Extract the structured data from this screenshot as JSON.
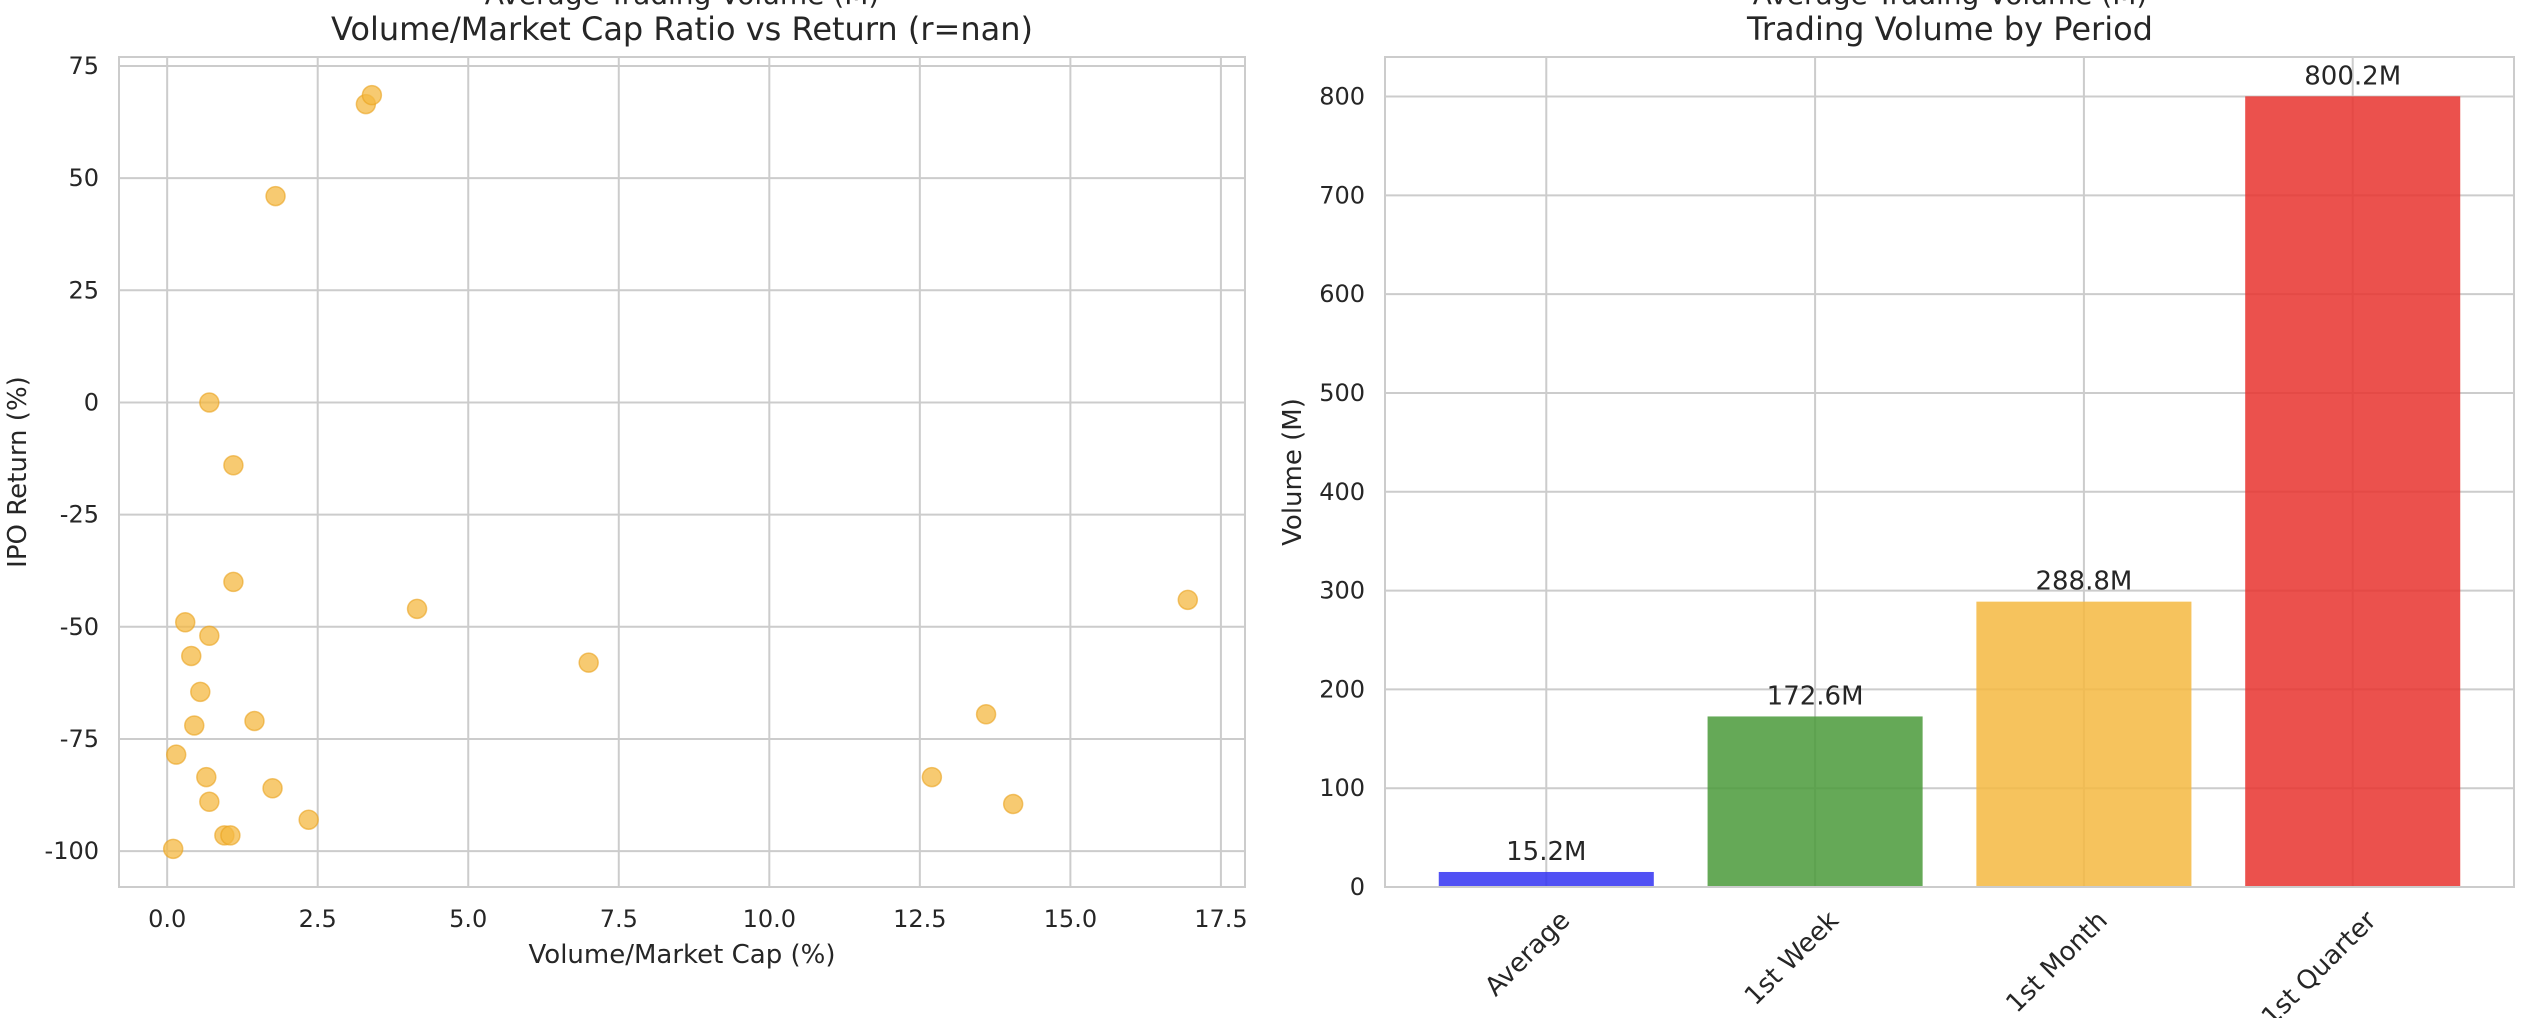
{
  "chart_data": [
    {
      "type": "scatter",
      "suptitle": "Average Trading Volume (M)",
      "title": "Volume/Market Cap Ratio vs Return (r=nan)",
      "xlabel": "Volume/Market Cap (%)",
      "ylabel": "IPO Return (%)",
      "xlim": [
        -0.8,
        17.9
      ],
      "ylim": [
        -108,
        77
      ],
      "xticks": [
        0.0,
        2.5,
        5.0,
        7.5,
        10.0,
        12.5,
        15.0,
        17.5
      ],
      "xtick_labels": [
        "0.0",
        "2.5",
        "5.0",
        "7.5",
        "10.0",
        "12.5",
        "15.0",
        "17.5"
      ],
      "yticks": [
        75,
        50,
        25,
        0,
        -25,
        -50,
        -75,
        -100
      ],
      "ytick_labels": [
        "75",
        "50",
        "25",
        "0",
        "-25",
        "-50",
        "-75",
        "-100"
      ],
      "grid": true,
      "marker_color": "#F4B841",
      "points": [
        {
          "x": 3.3,
          "y": 66.5
        },
        {
          "x": 3.4,
          "y": 68.5
        },
        {
          "x": 1.8,
          "y": 46
        },
        {
          "x": 0.7,
          "y": 0
        },
        {
          "x": 1.1,
          "y": -14
        },
        {
          "x": 1.1,
          "y": -40
        },
        {
          "x": 0.3,
          "y": -49
        },
        {
          "x": 0.7,
          "y": -52
        },
        {
          "x": 0.4,
          "y": -56.5
        },
        {
          "x": 0.55,
          "y": -64.5
        },
        {
          "x": 0.45,
          "y": -72
        },
        {
          "x": 1.45,
          "y": -71
        },
        {
          "x": 0.15,
          "y": -78.5
        },
        {
          "x": 0.65,
          "y": -83.5
        },
        {
          "x": 1.75,
          "y": -86
        },
        {
          "x": 0.7,
          "y": -89
        },
        {
          "x": 2.35,
          "y": -93
        },
        {
          "x": 0.95,
          "y": -96.5
        },
        {
          "x": 1.05,
          "y": -96.5
        },
        {
          "x": 0.1,
          "y": -99.5
        },
        {
          "x": 4.15,
          "y": -46
        },
        {
          "x": 7.0,
          "y": -58
        },
        {
          "x": 12.7,
          "y": -83.5
        },
        {
          "x": 13.6,
          "y": -69.5
        },
        {
          "x": 14.05,
          "y": -89.5
        },
        {
          "x": 16.95,
          "y": -44
        }
      ]
    },
    {
      "type": "bar",
      "suptitle": "Average Trading Volume (M)",
      "title": "Trading Volume by Period",
      "xlabel": "",
      "ylabel": "Volume (M)",
      "ylim": [
        0,
        840
      ],
      "yticks": [
        0,
        100,
        200,
        300,
        400,
        500,
        600,
        700,
        800
      ],
      "ytick_labels": [
        "0",
        "100",
        "200",
        "300",
        "400",
        "500",
        "600",
        "700",
        "800"
      ],
      "grid": true,
      "categories": [
        "Average",
        "1st Week",
        "1st Month",
        "1st Quarter"
      ],
      "values": [
        15.2,
        172.6,
        288.8,
        800.2
      ],
      "value_labels": [
        "15.2M",
        "172.6M",
        "288.8M",
        "800.2M"
      ],
      "colors": [
        "#3333F2",
        "#4A9A3A",
        "#F4B841",
        "#E8322E"
      ]
    }
  ]
}
